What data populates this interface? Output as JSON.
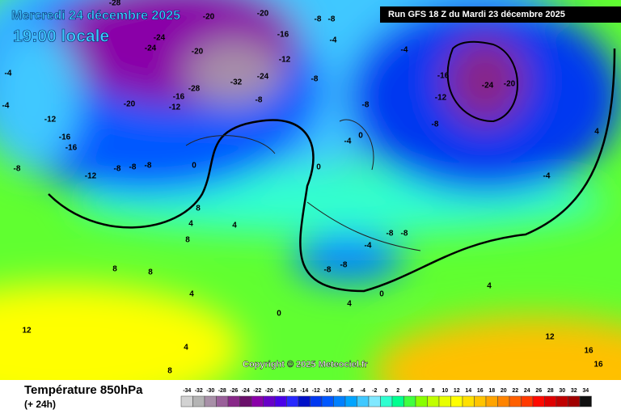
{
  "header": {
    "date": "Mercredi 24 décembre 2025",
    "time": "19:00 locale",
    "run": "Run GFS 18 Z du Mardi 23 décembre 2025"
  },
  "copyright": "Copyright © 2025 Meteociel.fr",
  "footer": {
    "title": "Température 850hPa",
    "lead": "(+ 24h)"
  },
  "scale": {
    "values": [
      -34,
      -32,
      -30,
      -28,
      -26,
      -24,
      -22,
      -20,
      -18,
      -16,
      -14,
      -12,
      -10,
      -8,
      -6,
      -4,
      -2,
      0,
      2,
      4,
      6,
      8,
      10,
      12,
      14,
      16,
      18,
      20,
      22,
      24,
      26,
      28,
      30,
      32,
      34
    ],
    "colors": [
      "#d2d2d2",
      "#b4b4b4",
      "#a890a8",
      "#9a609a",
      "#882888",
      "#6a106a",
      "#8a00a8",
      "#6800c8",
      "#4a00e8",
      "#2828ff",
      "#0010c8",
      "#0038f0",
      "#0058ff",
      "#0080ff",
      "#00a4ff",
      "#40c8ff",
      "#80e8ff",
      "#30ffd0",
      "#00ff90",
      "#40ff40",
      "#88ff00",
      "#c0ff00",
      "#e8ff00",
      "#ffff00",
      "#ffe000",
      "#ffc400",
      "#ffa400",
      "#ff8400",
      "#ff6000",
      "#ff3a00",
      "#ff0a00",
      "#e00000",
      "#c00000",
      "#a00000",
      "#101010"
    ]
  },
  "map_labels": [
    -28,
    -20,
    -20,
    -8,
    -8,
    -24,
    -24,
    -20,
    -16,
    -4,
    -12,
    -24,
    -32,
    -28,
    -16,
    -12,
    -20,
    -8,
    -8,
    -4,
    -16,
    -24,
    -20,
    -12,
    -8,
    -12,
    -16,
    -16,
    -8,
    -12,
    -8,
    -8,
    -8,
    0,
    -4,
    -4,
    -8,
    0,
    -4,
    0,
    -4,
    4,
    8,
    4,
    4,
    8,
    8,
    8,
    4,
    0,
    4,
    0,
    4,
    -8,
    -8,
    -4,
    -8,
    -8,
    12,
    8,
    12,
    16,
    16,
    4
  ]
}
